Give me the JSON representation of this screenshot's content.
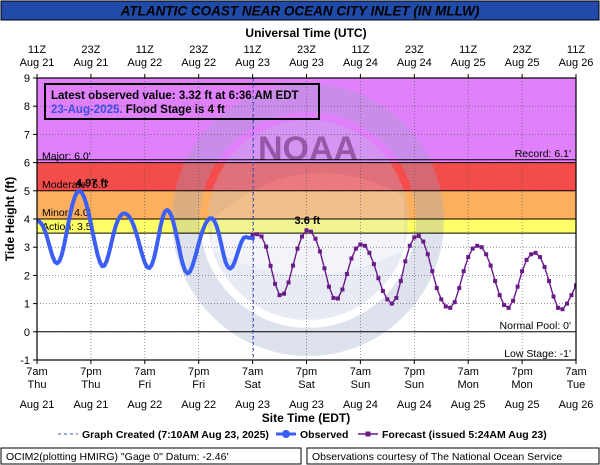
{
  "chart_data": {
    "type": "line",
    "title": "ATLANTIC COAST NEAR OCEAN CITY INLET (IN MLLW)",
    "top_axis_label": "Universal Time (UTC)",
    "xlabel": "Site Time (EDT)",
    "ylabel": "Tide Height (ft)",
    "ylim": [
      -1,
      9
    ],
    "yticks": [
      "-1",
      "0",
      "1",
      "2",
      "3",
      "4",
      "5",
      "6",
      "7",
      "8",
      "9"
    ],
    "x_time_range_edt_hours": [
      7,
      127
    ],
    "x_origin": "Aug 21 7am EDT",
    "top_ticks": [
      {
        "t": 7,
        "l1": "11Z",
        "l2": "Aug 21"
      },
      {
        "t": 19,
        "l1": "23Z",
        "l2": "Aug 21"
      },
      {
        "t": 31,
        "l1": "11Z",
        "l2": "Aug 22"
      },
      {
        "t": 43,
        "l1": "23Z",
        "l2": "Aug 22"
      },
      {
        "t": 55,
        "l1": "11Z",
        "l2": "Aug 23"
      },
      {
        "t": 67,
        "l1": "23Z",
        "l2": "Aug 23"
      },
      {
        "t": 79,
        "l1": "11Z",
        "l2": "Aug 24"
      },
      {
        "t": 91,
        "l1": "23Z",
        "l2": "Aug 24"
      },
      {
        "t": 103,
        "l1": "11Z",
        "l2": "Aug 25"
      },
      {
        "t": 115,
        "l1": "23Z",
        "l2": "Aug 25"
      },
      {
        "t": 127,
        "l1": "11Z",
        "l2": "Aug 26"
      }
    ],
    "bottom_ticks": [
      {
        "t": 7,
        "l1": "7am",
        "l2": "Thu",
        "l3": "Aug 21"
      },
      {
        "t": 19,
        "l1": "7pm",
        "l2": "Thu",
        "l3": "Aug 21"
      },
      {
        "t": 31,
        "l1": "7am",
        "l2": "Fri",
        "l3": "Aug 22"
      },
      {
        "t": 43,
        "l1": "7pm",
        "l2": "Fri",
        "l3": "Aug 22"
      },
      {
        "t": 55,
        "l1": "7am",
        "l2": "Sat",
        "l3": "Aug 23"
      },
      {
        "t": 67,
        "l1": "7pm",
        "l2": "Sat",
        "l3": "Aug 23"
      },
      {
        "t": 79,
        "l1": "7am",
        "l2": "Sun",
        "l3": "Aug 24"
      },
      {
        "t": 91,
        "l1": "7pm",
        "l2": "Sun",
        "l3": "Aug 24"
      },
      {
        "t": 103,
        "l1": "7am",
        "l2": "Mon",
        "l3": "Aug 25"
      },
      {
        "t": 115,
        "l1": "7pm",
        "l2": "Mon",
        "l3": "Aug 25"
      },
      {
        "t": 127,
        "l1": "7am",
        "l2": "Tue",
        "l3": "Aug 26"
      }
    ],
    "bands": [
      {
        "name": "Major",
        "from": 6.0,
        "to": 9.0,
        "color": "#e080fa"
      },
      {
        "name": "Moderate",
        "from": 5.0,
        "to": 6.0,
        "color": "#f44b4b"
      },
      {
        "name": "Minor",
        "from": 4.0,
        "to": 5.0,
        "color": "#fcb05d"
      },
      {
        "name": "Action",
        "from": 3.5,
        "to": 4.0,
        "color": "#ffff66"
      }
    ],
    "stage_lines": [
      {
        "label": "Major: 6.0'",
        "y": 6.0,
        "side": "left"
      },
      {
        "label": "Moderate: 5.0'",
        "y": 5.0,
        "side": "left"
      },
      {
        "label": "Minor: 4.0'",
        "y": 4.0,
        "side": "left"
      },
      {
        "label": "Action: 3.5'",
        "y": 3.5,
        "side": "left"
      },
      {
        "label": "Record: 6.1'",
        "y": 6.1,
        "side": "right"
      },
      {
        "label": "Normal Pool: 0'",
        "y": 0.0,
        "side": "right"
      },
      {
        "label": "Low Stage: -1'",
        "y": -1.0,
        "side": "right"
      }
    ],
    "graph_created_t": 55.17,
    "series": [
      {
        "name": "Observed",
        "color": "#3b5ef5",
        "x": [
          7,
          7.5,
          8,
          8.5,
          9,
          9.5,
          10,
          10.5,
          11,
          11.5,
          12,
          12.5,
          13,
          13.5,
          14,
          14.5,
          15,
          15.5,
          16,
          16.5,
          17,
          17.5,
          18,
          18.5,
          19,
          19.5,
          20,
          20.5,
          21,
          21.5,
          22,
          22.5,
          23,
          23.5,
          24,
          24.5,
          25,
          25.5,
          26,
          26.5,
          27,
          27.5,
          28,
          28.5,
          29,
          29.5,
          30,
          30.5,
          31,
          31.5,
          32,
          32.5,
          33,
          33.5,
          34,
          34.5,
          35,
          35.5,
          36,
          36.5,
          37,
          37.5,
          38,
          38.5,
          39,
          39.5,
          40,
          40.5,
          41,
          41.5,
          42,
          42.5,
          43,
          43.5,
          44,
          44.5,
          45,
          45.5,
          46,
          46.5,
          47,
          47.5,
          48,
          48.5,
          49,
          49.5,
          50,
          50.5,
          51,
          51.5,
          52,
          52.5,
          53,
          53.5,
          54,
          54.5,
          55,
          55.1
        ],
        "y": [
          3.93,
          3.91,
          3.83,
          3.69,
          3.48,
          3.21,
          2.92,
          2.66,
          2.48,
          2.43,
          2.51,
          2.72,
          3.05,
          3.45,
          3.86,
          4.25,
          4.57,
          4.82,
          4.96,
          5.0,
          4.93,
          4.77,
          4.52,
          4.2,
          3.83,
          3.45,
          3.07,
          2.73,
          2.47,
          2.33,
          2.34,
          2.5,
          2.78,
          3.11,
          3.45,
          3.74,
          3.95,
          4.1,
          4.18,
          4.2,
          4.17,
          4.09,
          3.96,
          3.78,
          3.54,
          3.27,
          2.97,
          2.69,
          2.45,
          2.3,
          2.26,
          2.35,
          2.58,
          2.92,
          3.33,
          3.74,
          4.07,
          4.27,
          4.32,
          4.25,
          4.07,
          3.8,
          3.46,
          3.08,
          2.7,
          2.38,
          2.16,
          2.07,
          2.12,
          2.29,
          2.54,
          2.83,
          3.13,
          3.4,
          3.64,
          3.83,
          3.96,
          4.03,
          4.02,
          3.93,
          3.74,
          3.46,
          3.11,
          2.76,
          2.46,
          2.3,
          2.24,
          2.31,
          2.47,
          2.71,
          2.96,
          3.18,
          3.33,
          3.36,
          3.34,
          3.33,
          3.32,
          3.32
        ]
      },
      {
        "name": "Forecast",
        "color": "#6a1b8a",
        "x": [
          55,
          56,
          57,
          58,
          59,
          60,
          61,
          62,
          63,
          64,
          65,
          66,
          67,
          68,
          69,
          70,
          71,
          72,
          73,
          74,
          75,
          76,
          77,
          78,
          79,
          80,
          81,
          82,
          83,
          84,
          85,
          86,
          87,
          88,
          89,
          90,
          91,
          92,
          93,
          94,
          95,
          96,
          97,
          98,
          99,
          100,
          101,
          102,
          103,
          104,
          105,
          106,
          107,
          108,
          109,
          110,
          111,
          112,
          113,
          114,
          115,
          116,
          117,
          118,
          119,
          120,
          121,
          122,
          123,
          124,
          125,
          126,
          127
        ],
        "y": [
          3.45,
          3.46,
          3.38,
          3.02,
          2.34,
          1.7,
          1.3,
          1.35,
          1.75,
          2.35,
          2.95,
          3.38,
          3.6,
          3.55,
          3.3,
          2.85,
          2.25,
          1.6,
          1.2,
          1.18,
          1.5,
          2.05,
          2.6,
          2.95,
          3.1,
          3.05,
          2.8,
          2.4,
          1.9,
          1.45,
          1.15,
          1.0,
          1.2,
          1.8,
          2.5,
          3.05,
          3.35,
          3.4,
          3.2,
          2.75,
          2.15,
          1.55,
          1.15,
          0.9,
          0.85,
          1.05,
          1.55,
          2.15,
          2.65,
          2.95,
          3.05,
          3.0,
          2.75,
          2.35,
          1.8,
          1.3,
          0.95,
          0.85,
          1.1,
          1.6,
          2.15,
          2.55,
          2.75,
          2.8,
          2.65,
          2.3,
          1.8,
          1.25,
          0.85,
          0.8,
          1.0,
          1.3,
          1.65
        ]
      }
    ],
    "annotations": [
      {
        "text": "4.97 ft",
        "t": 19.2,
        "y": 5.15,
        "color": "#4a66f0"
      },
      {
        "text": "3.6 ft",
        "t": 67.2,
        "y": 3.82,
        "color": "#6a1b8a"
      }
    ],
    "latest_box": {
      "line1": "Latest observed value: 3.32 ft at 6:36 AM EDT",
      "line2a": "23-Aug-2025.",
      "line2b": " Flood Stage is 4 ft"
    },
    "legend": {
      "created": "Graph Created (7:10AM Aug 23, 2025)",
      "observed": "Observed",
      "forecast": "Forecast (issued 5:24AM Aug 23)"
    },
    "footer_left": "OCIM2(plotting HMIRG) \"Gage 0\" Datum: -2.46'",
    "footer_right": "Observations courtesy of The National Ocean Service",
    "watermark": "NOAA — NATIONAL OCEANIC AND ATMOSPHERIC ADMINISTRATION — U.S. DEPARTMENT OF COMMERCE"
  }
}
